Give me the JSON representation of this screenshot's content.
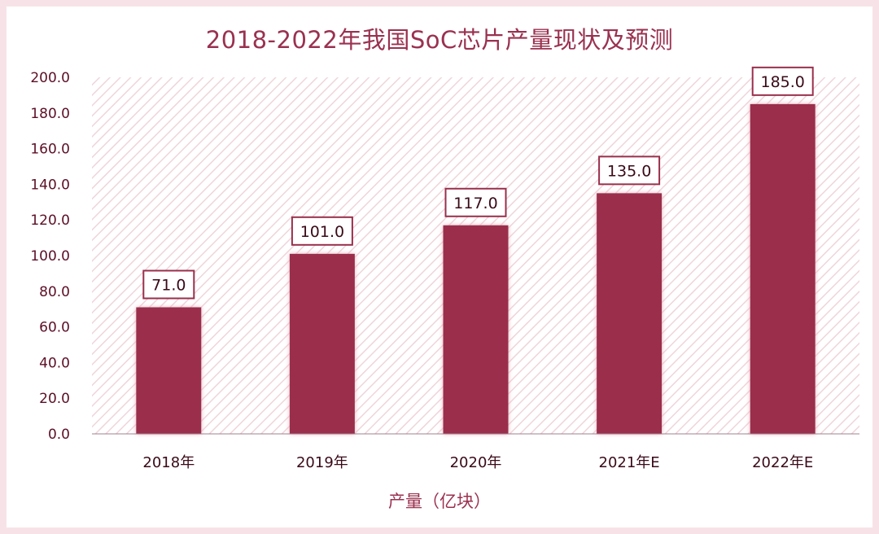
{
  "chart_data": {
    "type": "bar",
    "title": "2018-2022年我国SoC芯片产量现状及预测",
    "xlabel": "产量（亿块）",
    "ylabel": "",
    "categories": [
      "2018年",
      "2019年",
      "2020年",
      "2021年E",
      "2022年E"
    ],
    "values": [
      71.0,
      101.0,
      117.0,
      135.0,
      185.0
    ],
    "data_labels": [
      "71.0",
      "101.0",
      "117.0",
      "135.0",
      "185.0"
    ],
    "ylim": [
      0,
      200
    ],
    "y_ticks": [
      "0.0",
      "20.0",
      "40.0",
      "60.0",
      "80.0",
      "100.0",
      "120.0",
      "140.0",
      "160.0",
      "180.0",
      "200.0"
    ],
    "grid": false,
    "legend": "none",
    "colors": {
      "bar": "#9a2f4c",
      "title": "#9a3150",
      "frame": "#f7e3e7",
      "hatch": "#efd5db"
    }
  }
}
